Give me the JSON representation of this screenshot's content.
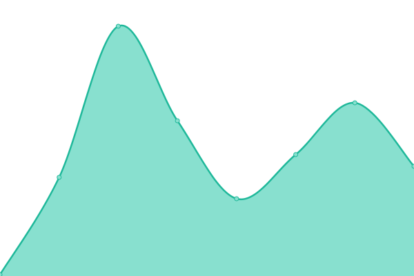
{
  "chart_data": {
    "type": "area",
    "categories": [
      null,
      null,
      null,
      null,
      null,
      null,
      null,
      null
    ],
    "series": [
      {
        "color": "#1fb89a",
        "fill": "#88e0cf",
        "values": [
          2,
          143,
          362,
          225,
          112,
          176,
          251,
          159
        ]
      }
    ],
    "ylim": [
      0,
      400
    ],
    "markers": true,
    "smooth": true
  }
}
